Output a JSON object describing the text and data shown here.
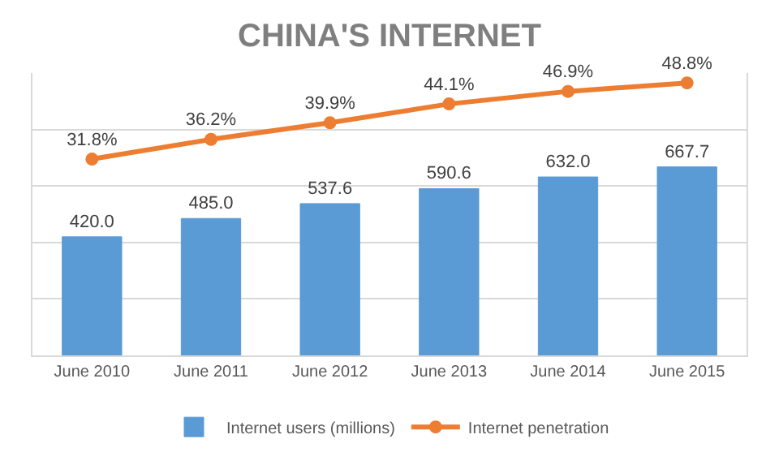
{
  "chart_data": {
    "type": "bar",
    "title": "CHINA'S INTERNET",
    "categories": [
      "June 2010",
      "June 2011",
      "June 2012",
      "June 2013",
      "June 2014",
      "June 2015"
    ],
    "series": [
      {
        "name": "Internet users (millions)",
        "color": "#5b9bd5",
        "values": [
          420.0,
          485.0,
          537.6,
          590.6,
          632.0,
          667.7
        ],
        "value_labels": [
          "420.0",
          "485.0",
          "537.6",
          "590.6",
          "632.0",
          "667.7"
        ]
      },
      {
        "name": "Internet penetration",
        "type": "line",
        "axis": "y2",
        "color": "#ed7d31",
        "marker": "circle",
        "values": [
          31.8,
          36.2,
          39.9,
          44.1,
          46.9,
          48.8
        ],
        "value_labels": [
          "31.8%",
          "36.2%",
          "39.9%",
          "44.1%",
          "46.9%",
          "48.8%"
        ]
      }
    ],
    "ylim": [
      0,
      1000
    ],
    "y2lim": [
      -12,
      51
    ],
    "grid": "y",
    "legend": "bottom",
    "tick_labels": "x"
  }
}
